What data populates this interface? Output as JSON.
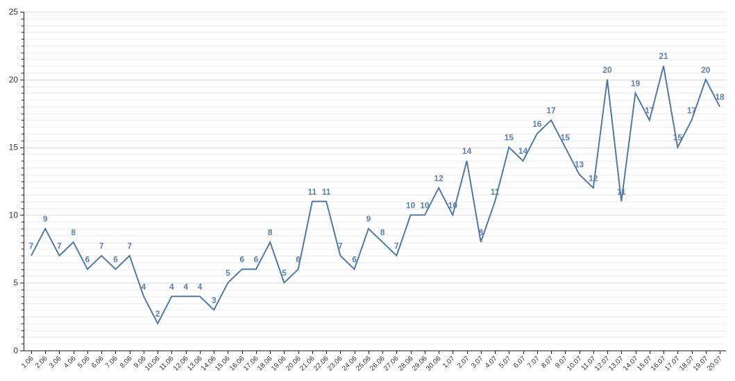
{
  "chart_data": {
    "type": "line",
    "title": "",
    "xlabel": "",
    "ylabel": "",
    "ylim": [
      0,
      25
    ],
    "y_major_ticks": [
      0,
      5,
      10,
      15,
      20,
      25
    ],
    "y_minor_step": 0.5,
    "grid": true,
    "legend": "none",
    "color": "#4e79a7",
    "label_color": "#5b7fa8",
    "categories": [
      "1.06",
      "2.06",
      "3.06",
      "4.06",
      "5.06",
      "6.06",
      "7.06",
      "8.06",
      "9.06",
      "10.06",
      "11.06",
      "12.06",
      "13.06",
      "14.06",
      "15.06",
      "16.06",
      "17.06",
      "18.06",
      "19.06",
      "20.06",
      "21.06",
      "22.06",
      "23.06",
      "24.06",
      "25.06",
      "26.06",
      "27.06",
      "28.06",
      "29.06",
      "30.06",
      "1.07",
      "2.07",
      "3.07",
      "4.07",
      "5.07",
      "6.07",
      "7.07",
      "8.07",
      "9.07",
      "10.07",
      "11.07",
      "12.07",
      "13.07",
      "14.07",
      "15.07",
      "16.07",
      "17.07",
      "18.07",
      "19.07",
      "20.07"
    ],
    "series": [
      {
        "values": [
          7,
          9,
          7,
          8,
          6,
          7,
          6,
          7,
          4,
          2,
          4,
          4,
          4,
          3,
          5,
          6,
          6,
          8,
          5,
          6,
          11,
          11,
          7,
          6,
          9,
          8,
          7,
          10,
          10,
          12,
          10,
          14,
          8,
          11,
          15,
          14,
          16,
          17,
          15,
          13,
          12,
          20,
          11,
          19,
          17,
          21,
          15,
          17,
          20,
          18
        ]
      }
    ]
  }
}
